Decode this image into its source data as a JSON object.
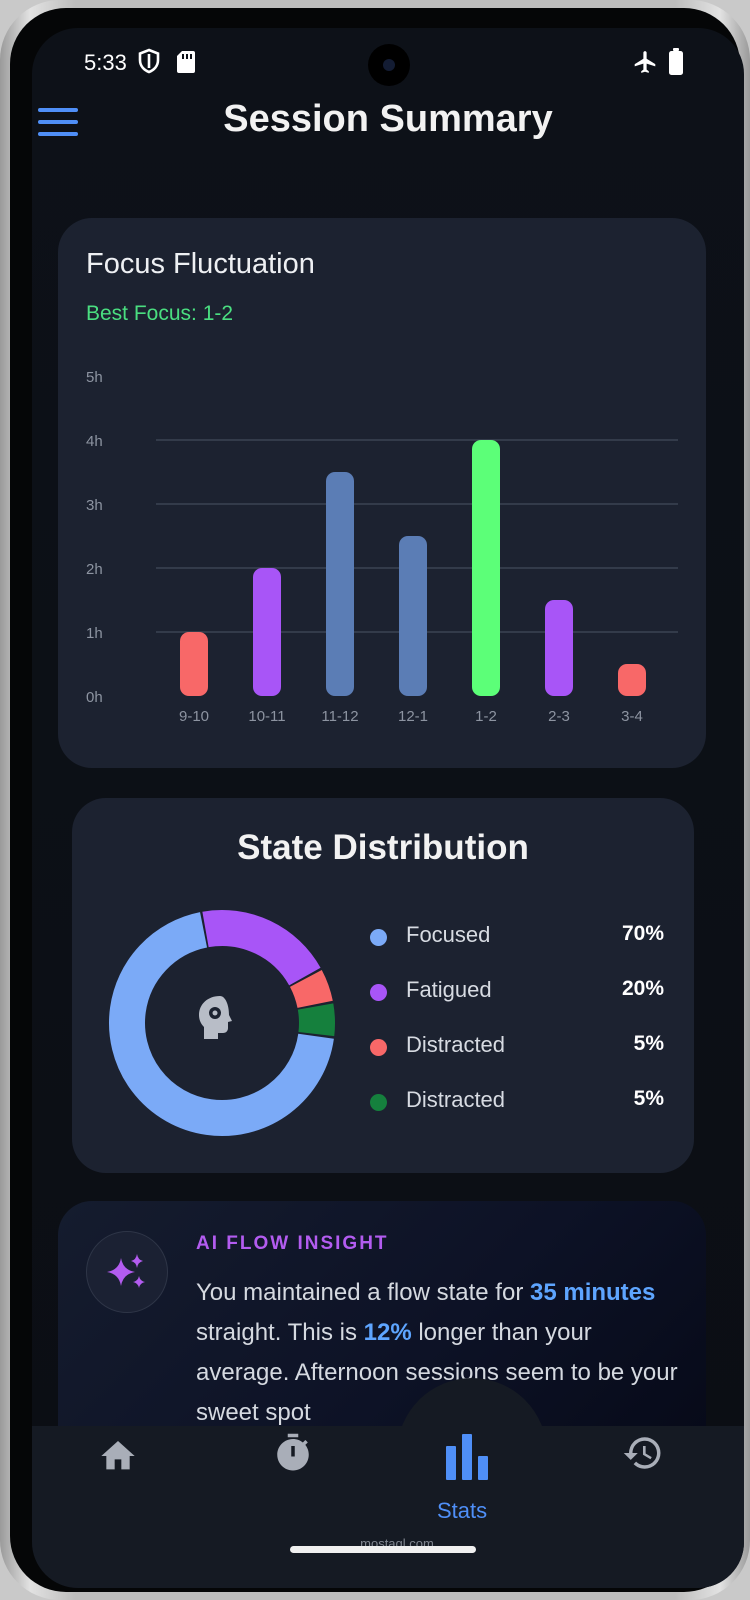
{
  "status_bar": {
    "time": "5:33"
  },
  "header": {
    "title": "Session Summary"
  },
  "focus_card": {
    "title": "Focus Fluctuation",
    "best_focus": "Best Focus: 1-2"
  },
  "chart_data": {
    "type": "bar",
    "title": "Focus Fluctuation",
    "categories": [
      "9-10",
      "10-11",
      "11-12",
      "12-1",
      "1-2",
      "2-3",
      "3-4"
    ],
    "values": [
      1,
      2,
      3.5,
      2.5,
      4,
      1.5,
      0.5
    ],
    "ytick_labels": [
      "0h",
      "1h",
      "2h",
      "3h",
      "4h",
      "5h"
    ],
    "ylim": [
      0,
      5
    ],
    "grid": true,
    "colors": [
      "#f86868",
      "#a855f7",
      "#5b7db5",
      "#5b7db5",
      "#5cff78",
      "#a855f7",
      "#f86868"
    ]
  },
  "distribution_card": {
    "title": "State Distribution",
    "items": [
      {
        "label": "Focused",
        "value": "70%",
        "pct": 70,
        "color": "#7baaf7"
      },
      {
        "label": "Fatigued",
        "value": "20%",
        "pct": 20,
        "color": "#a855f7"
      },
      {
        "label": "Distracted",
        "value": "5%",
        "pct": 5,
        "color": "#f86868"
      },
      {
        "label": "Distracted",
        "value": "5%",
        "pct": 5,
        "color": "#15803d"
      }
    ],
    "center_icon": "head-gear-icon"
  },
  "insight_card": {
    "label": "AI FLOW INSIGHT",
    "icon": "sparkles-icon",
    "text_1": "You maintained a flow state for ",
    "highlight_1": "35 minutes",
    "text_2": " straight. This is ",
    "highlight_2": "12%",
    "text_3": " longer than your average. Afternoon sessions seem to be your sweet spot"
  },
  "nav": {
    "items": [
      {
        "icon": "home-icon"
      },
      {
        "icon": "timer-icon"
      },
      {
        "icon": "stats-icon",
        "label": "Stats",
        "active": true
      },
      {
        "icon": "history-icon"
      }
    ],
    "active_color": "#4f8ff7"
  },
  "watermark": "mostaql.com"
}
